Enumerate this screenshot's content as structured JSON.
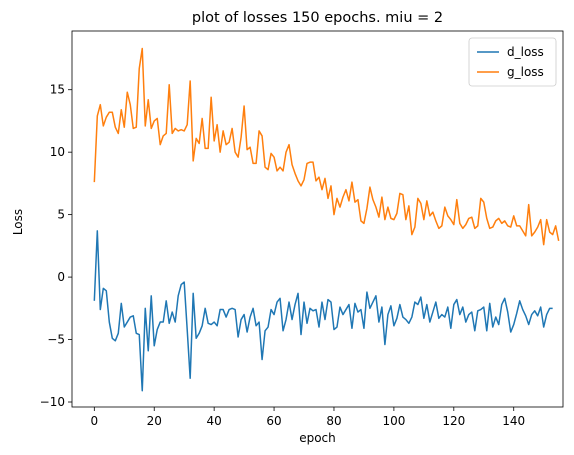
{
  "chart_data": {
    "type": "line",
    "title": "plot of losses 150 epochs. miu = 2",
    "xlabel": "epoch",
    "ylabel": "Loss",
    "xlim": [
      -7.45,
      156.45
    ],
    "ylim": [
      -10.4,
      19.7
    ],
    "xticks": [
      0,
      20,
      40,
      60,
      80,
      100,
      120,
      140
    ],
    "yticks": [
      -10,
      -5,
      0,
      5,
      10,
      15
    ],
    "grid": false,
    "legend_position": "top-right",
    "series": [
      {
        "name": "d_loss",
        "color": "#1f77b4",
        "values": [
          -1.9,
          3.7,
          -2.6,
          -0.9,
          -1.1,
          -3.6,
          -4.9,
          -5.1,
          -4.5,
          -2.1,
          -4.0,
          -3.6,
          -3.2,
          -3.1,
          -4.5,
          -4.6,
          -9.1,
          -2.5,
          -5.9,
          -1.5,
          -5.5,
          -4.2,
          -3.6,
          -3.6,
          -1.9,
          -3.7,
          -2.8,
          -3.6,
          -1.5,
          -0.6,
          -0.4,
          -4.2,
          -8.1,
          -1.3,
          -4.9,
          -4.5,
          -3.9,
          -2.5,
          -3.7,
          -3.8,
          -3.6,
          -3.9,
          -2.6,
          -2.6,
          -3.2,
          -2.6,
          -2.5,
          -2.6,
          -4.8,
          -3.4,
          -3.0,
          -4.4,
          -3.2,
          -2.5,
          -3.9,
          -3.6,
          -6.6,
          -4.3,
          -4.0,
          -2.6,
          -3.0,
          -2.0,
          -1.7,
          -4.3,
          -3.4,
          -2.0,
          -3.4,
          -2.2,
          -1.3,
          -4.6,
          -2.0,
          -3.7,
          -2.5,
          -2.7,
          -2.6,
          -4.0,
          -2.0,
          -3.4,
          -1.8,
          -2.0,
          -4.2,
          -4.0,
          -2.4,
          -3.0,
          -2.6,
          -2.2,
          -4.1,
          -2.1,
          -2.8,
          -2.6,
          -4.1,
          -1.2,
          -2.5,
          -2.0,
          -1.5,
          -3.6,
          -2.4,
          -5.4,
          -3.0,
          -2.3,
          -3.9,
          -3.3,
          -2.2,
          -3.2,
          -3.4,
          -3.7,
          -3.2,
          -2.0,
          -2.2,
          -1.6,
          -3.3,
          -2.2,
          -3.6,
          -2.8,
          -2.0,
          -3.3,
          -3.0,
          -3.2,
          -2.4,
          -4.1,
          -2.2,
          -1.8,
          -3.0,
          -2.4,
          -3.6,
          -3.0,
          -2.8,
          -4.3,
          -2.7,
          -2.6,
          -2.4,
          -4.3,
          -2.1,
          -4.0,
          -3.2,
          -3.8,
          -2.2,
          -1.7,
          -2.8,
          -4.4,
          -3.8,
          -2.9,
          -1.9,
          -2.6,
          -3.1,
          -3.8,
          -3.0,
          -2.7,
          -3.1,
          -2.4,
          -4.0,
          -3.0,
          -2.5,
          -2.5
        ]
      },
      {
        "name": "g_loss",
        "color": "#ff7f0e",
        "values": [
          7.6,
          12.9,
          13.8,
          12.1,
          12.8,
          13.2,
          13.2,
          12.0,
          11.5,
          13.4,
          12.0,
          14.8,
          13.8,
          11.9,
          12.0,
          16.7,
          18.3,
          12.1,
          14.2,
          11.9,
          12.5,
          12.7,
          10.6,
          11.3,
          11.5,
          15.4,
          11.5,
          11.9,
          11.7,
          11.8,
          11.7,
          12.2,
          15.7,
          9.3,
          11.1,
          10.7,
          12.7,
          10.3,
          10.3,
          14.4,
          10.9,
          12.2,
          10.0,
          11.7,
          10.6,
          10.8,
          11.9,
          10.0,
          9.6,
          11.2,
          13.7,
          10.2,
          10.4,
          9.1,
          9.1,
          11.7,
          11.3,
          8.8,
          8.6,
          9.9,
          9.6,
          8.5,
          8.8,
          8.5,
          10.0,
          10.6,
          9.0,
          8.3,
          7.7,
          7.3,
          7.8,
          9.1,
          9.2,
          9.2,
          7.7,
          8.0,
          7.0,
          7.9,
          6.3,
          7.3,
          5.0,
          6.3,
          5.6,
          6.4,
          7.0,
          6.1,
          7.6,
          6.0,
          6.2,
          4.5,
          4.3,
          5.5,
          7.2,
          6.2,
          5.6,
          4.8,
          6.4,
          4.6,
          5.6,
          4.7,
          4.6,
          5.1,
          6.7,
          6.6,
          4.6,
          5.7,
          3.4,
          4.0,
          6.3,
          5.9,
          4.6,
          6.1,
          4.9,
          5.2,
          4.5,
          3.9,
          4.1,
          5.6,
          4.9,
          4.6,
          4.2,
          6.2,
          4.3,
          3.9,
          4.2,
          4.7,
          4.8,
          3.9,
          4.1,
          6.3,
          6.0,
          4.7,
          3.9,
          4.0,
          4.5,
          4.7,
          4.3,
          4.5,
          4.1,
          4.0,
          4.9,
          4.1,
          4.1,
          3.7,
          3.3,
          5.8,
          3.3,
          3.6,
          4.0,
          4.6,
          2.6,
          4.6,
          3.6,
          3.4,
          4.1,
          2.9
        ]
      }
    ]
  }
}
